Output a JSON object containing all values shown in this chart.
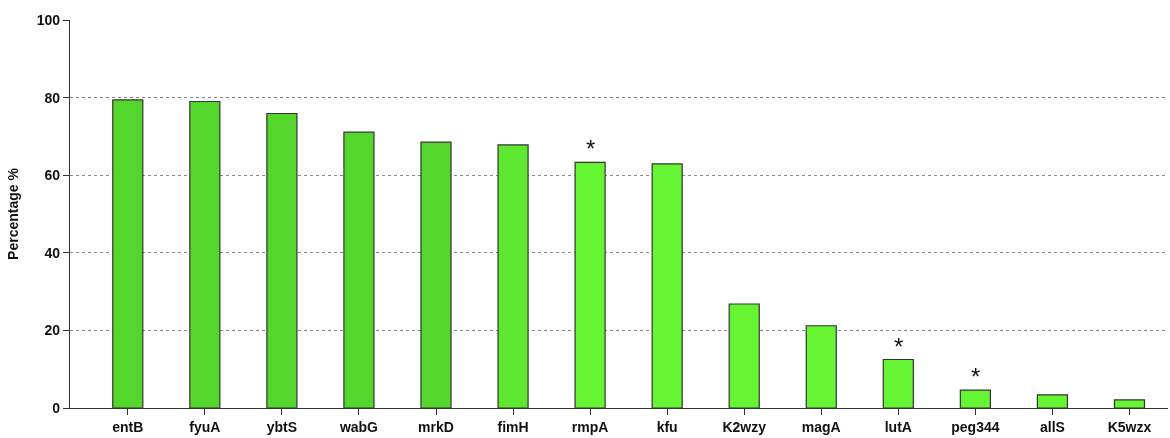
{
  "chart_data": {
    "type": "bar",
    "ylabel": "Percentage %",
    "categories": [
      "entB",
      "fyuA",
      "ybtS",
      "wabG",
      "mrkD",
      "fimH",
      "rmpA",
      "kfu",
      "K2wzy",
      "magA",
      "lutA",
      "peg344",
      "allS",
      "K5wzx"
    ],
    "values": [
      79.4,
      79.0,
      75.9,
      71.1,
      68.5,
      67.8,
      63.3,
      62.9,
      26.8,
      21.2,
      12.5,
      4.6,
      3.4,
      2.1
    ],
    "colors": [
      "#55d62d",
      "#55d62d",
      "#55d62d",
      "#55d62d",
      "#55d62d",
      "#5ee830",
      "#66f533",
      "#66f533",
      "#66f533",
      "#66f533",
      "#66f533",
      "#66f533",
      "#66f533",
      "#66f533"
    ],
    "ylim": [
      0,
      100
    ],
    "yticks": [
      0,
      20,
      40,
      60,
      80,
      100
    ],
    "grid": "y",
    "annotations": [
      {
        "text": "*",
        "x": "rmpA",
        "y": 63.3
      },
      {
        "text": "*",
        "x": "lutA",
        "y": 12.5
      },
      {
        "text": "*",
        "x": "peg344",
        "y": 4.6
      }
    ]
  }
}
